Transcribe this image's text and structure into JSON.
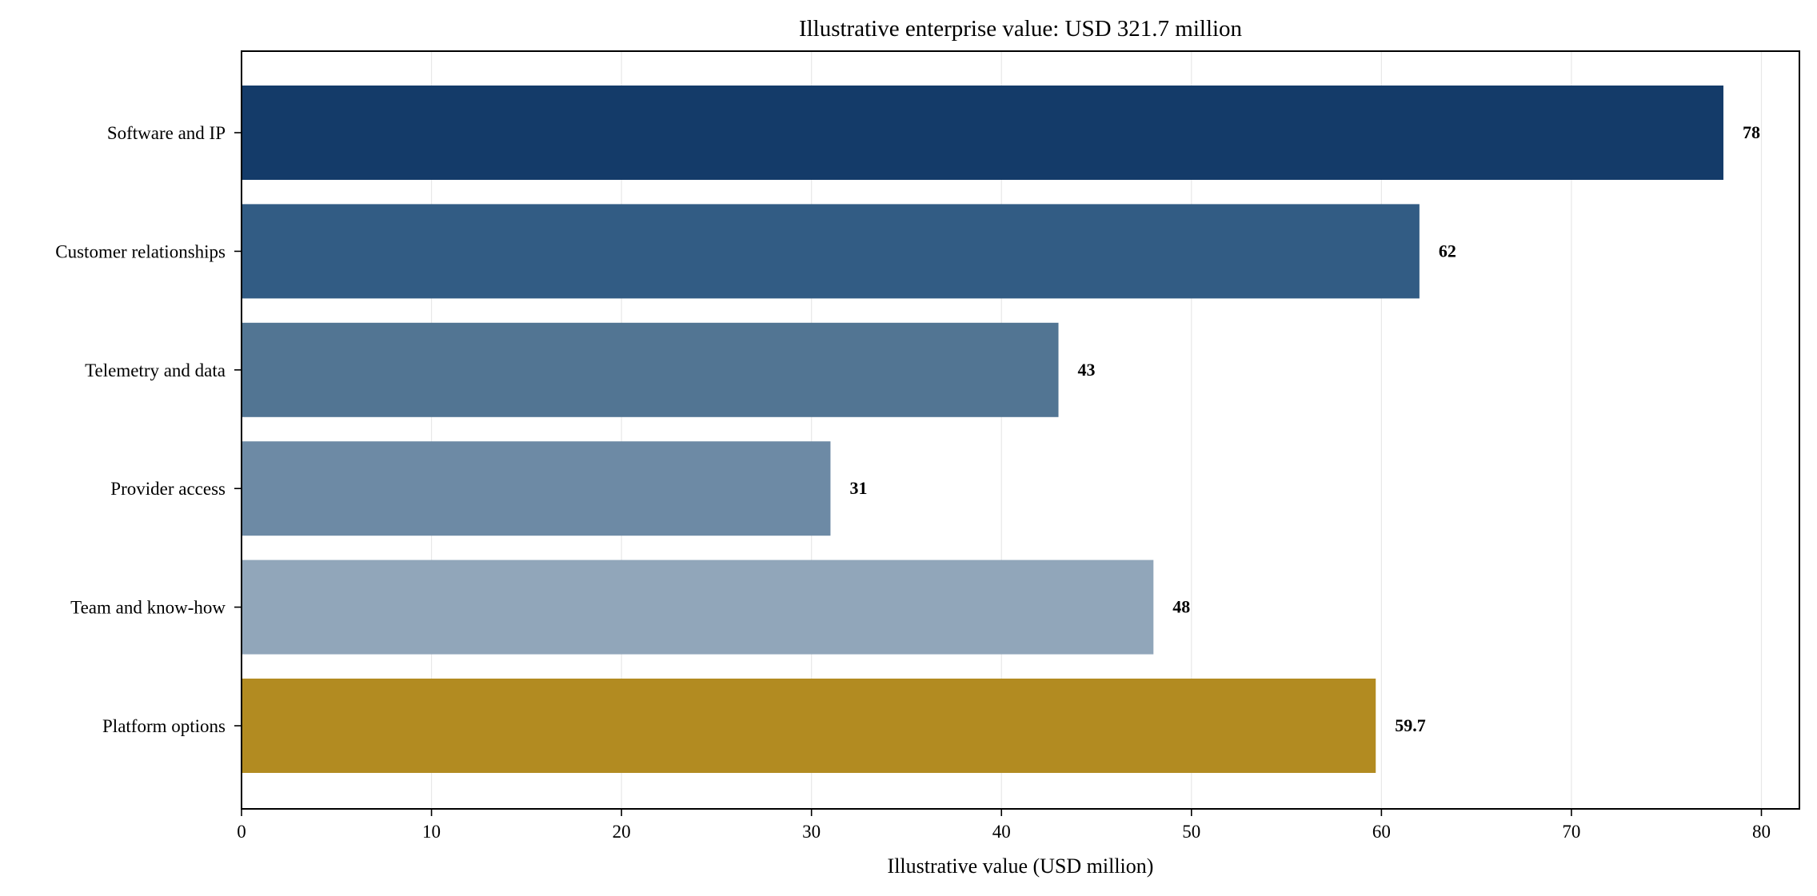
{
  "chart_data": {
    "type": "bar",
    "orientation": "horizontal",
    "title": "Illustrative enterprise value: USD 321.7 million",
    "xlabel": "Illustrative value (USD million)",
    "ylabel": "",
    "xlim": [
      0,
      82
    ],
    "xticks": [
      0,
      10,
      20,
      30,
      40,
      50,
      60,
      70,
      80
    ],
    "grid": "x",
    "legend": "none",
    "categories": [
      "Software and IP",
      "Customer relationships",
      "Telemetry and data",
      "Provider access",
      "Team and know-how",
      "Platform options"
    ],
    "values": [
      78,
      62,
      43,
      31,
      48,
      59.7
    ],
    "value_labels": [
      "78",
      "62",
      "43",
      "31",
      "48",
      "59.7"
    ],
    "colors": [
      "#143b69",
      "#325c84",
      "#527593",
      "#6d8aa5",
      "#91a6ba",
      "#b28b21"
    ]
  }
}
